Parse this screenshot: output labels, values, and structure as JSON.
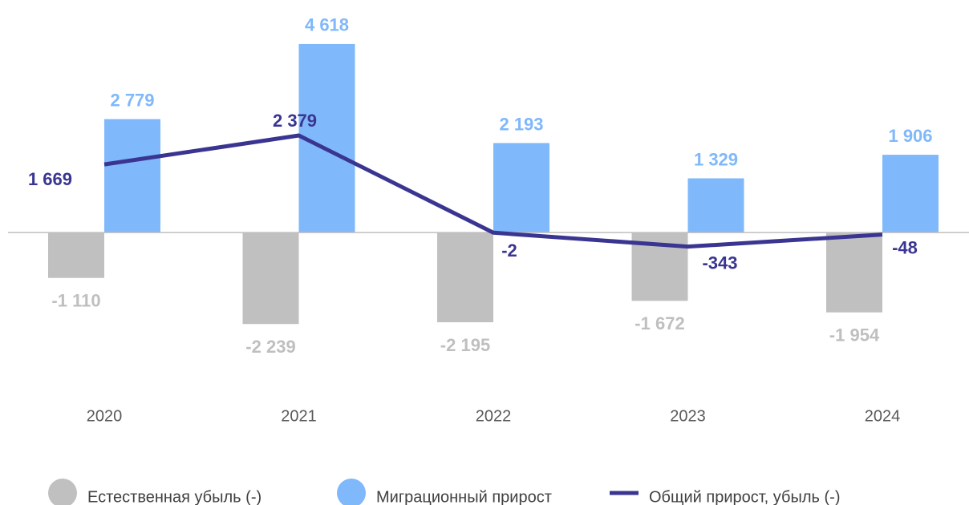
{
  "chart_data": {
    "type": "bar",
    "categories": [
      "2020",
      "2021",
      "2022",
      "2023",
      "2024"
    ],
    "ylim": [
      -3000,
      5500
    ],
    "series": [
      {
        "name": "Естественная убыль (-)",
        "type": "bar",
        "color": "#c0c0c0",
        "label_color": "#bfbfbf",
        "values": [
          -1110,
          -2239,
          -2195,
          -1672,
          -1954
        ],
        "value_labels": [
          "-1 110",
          "-2 239",
          "-2 195",
          "-1 672",
          "-1 954"
        ]
      },
      {
        "name": "Миграционный прирост",
        "type": "bar",
        "color": "#7fb8fb",
        "label_color": "#7fb8fb",
        "values": [
          2779,
          4618,
          2193,
          1329,
          1906
        ],
        "value_labels": [
          "2 779",
          "4 618",
          "2 193",
          "1 329",
          "1 906"
        ]
      },
      {
        "name": "Общий прирост, убыль (-)",
        "type": "line",
        "color": "#3a3591",
        "label_color": "#3a3591",
        "values": [
          1669,
          2379,
          -2,
          -343,
          -48
        ],
        "value_labels": [
          "1 669",
          "2 379",
          "-2",
          "-343",
          "-48"
        ]
      }
    ]
  }
}
